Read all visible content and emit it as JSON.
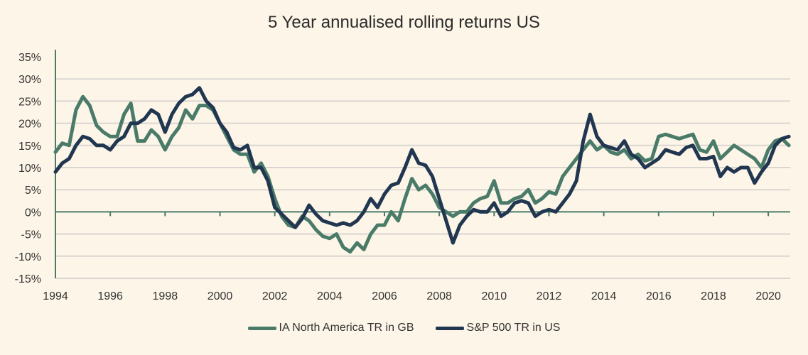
{
  "chart_data": {
    "type": "line",
    "title": "5 Year annualised rolling returns US",
    "xlabel": "",
    "ylabel": "",
    "xlim": [
      1994,
      2020.8
    ],
    "ylim": [
      -15,
      35
    ],
    "x_ticks": [
      "1994",
      "1996",
      "1998",
      "2000",
      "2002",
      "2004",
      "2006",
      "2008",
      "2010",
      "2012",
      "2014",
      "2016",
      "2018",
      "2020"
    ],
    "y_ticks": [
      "35%",
      "30%",
      "25%",
      "20%",
      "15%",
      "10%",
      "5%",
      "0%",
      "-5%",
      "-10%",
      "-15%"
    ],
    "grid": "horizontal",
    "legend": "bottom",
    "x": [
      1994,
      1994.25,
      1994.5,
      1994.75,
      1995,
      1995.25,
      1995.5,
      1995.75,
      1996,
      1996.25,
      1996.5,
      1996.75,
      1997,
      1997.25,
      1997.5,
      1997.75,
      1998,
      1998.25,
      1998.5,
      1998.75,
      1999,
      1999.25,
      1999.5,
      1999.75,
      2000,
      2000.25,
      2000.5,
      2000.75,
      2001,
      2001.25,
      2001.5,
      2001.75,
      2002,
      2002.25,
      2002.5,
      2002.75,
      2003,
      2003.25,
      2003.5,
      2003.75,
      2004,
      2004.25,
      2004.5,
      2004.75,
      2005,
      2005.25,
      2005.5,
      2005.75,
      2006,
      2006.25,
      2006.5,
      2006.75,
      2007,
      2007.25,
      2007.5,
      2007.75,
      2008,
      2008.25,
      2008.5,
      2008.75,
      2009,
      2009.25,
      2009.5,
      2009.75,
      2010,
      2010.25,
      2010.5,
      2010.75,
      2011,
      2011.25,
      2011.5,
      2011.75,
      2012,
      2012.25,
      2012.5,
      2012.75,
      2013,
      2013.25,
      2013.5,
      2013.75,
      2014,
      2014.25,
      2014.5,
      2014.75,
      2015,
      2015.25,
      2015.5,
      2015.75,
      2016,
      2016.25,
      2016.5,
      2016.75,
      2017,
      2017.25,
      2017.5,
      2017.75,
      2018,
      2018.25,
      2018.5,
      2018.75,
      2019,
      2019.25,
      2019.5,
      2019.75,
      2020,
      2020.25,
      2020.5,
      2020.75
    ],
    "series": [
      {
        "name": "IA North America TR in GB",
        "color": "#4a7b69",
        "values": [
          13.5,
          15.5,
          15,
          23,
          26,
          24,
          19.5,
          18,
          17,
          17,
          22,
          24.5,
          16,
          16,
          18.5,
          17,
          14,
          17,
          19,
          23,
          21,
          24,
          24,
          23,
          20,
          17,
          14,
          13,
          13,
          9,
          11,
          8,
          3,
          -1,
          -3,
          -3.5,
          -1,
          -2,
          -4,
          -5.5,
          -6,
          -5,
          -8,
          -9,
          -7,
          -8.5,
          -5,
          -3,
          -3,
          0,
          -2,
          3,
          7.5,
          5,
          6,
          4,
          1,
          0,
          -1,
          0,
          0,
          2,
          3,
          3.5,
          7,
          2,
          2,
          3,
          3.5,
          5,
          2,
          3,
          4.5,
          4,
          8,
          10,
          12,
          14,
          16,
          14,
          15,
          13.5,
          13,
          14,
          12,
          13,
          11.5,
          12,
          17,
          17.5,
          17,
          16.5,
          17,
          17.5,
          14,
          13.5,
          16,
          12,
          13.5,
          15,
          14,
          13,
          12,
          10,
          14,
          16,
          16.5,
          15
        ]
      },
      {
        "name": "S&P 500 TR in US",
        "color": "#213650",
        "values": [
          9,
          11,
          12,
          15,
          17,
          16.5,
          15,
          15,
          14,
          16,
          17,
          20,
          20,
          21,
          23,
          22,
          18,
          22,
          24.5,
          26,
          26.5,
          28,
          25,
          23.5,
          20,
          18,
          14.5,
          14,
          15,
          10,
          10,
          7,
          1,
          -0.5,
          -2,
          -3.5,
          -1.5,
          1.5,
          -0.5,
          -2,
          -2.5,
          -3,
          -2.5,
          -3,
          -2,
          0,
          3,
          1,
          4,
          6,
          6.5,
          10,
          14,
          11,
          10.5,
          8,
          3,
          -2,
          -7,
          -3,
          -1,
          0.5,
          0,
          0,
          2,
          -1,
          0,
          2,
          2.5,
          2,
          -1,
          0,
          0.5,
          0,
          2,
          4,
          7,
          16,
          22,
          17,
          15,
          14.5,
          14,
          16,
          13,
          12,
          10,
          11,
          12,
          14,
          13.5,
          13,
          14.5,
          15,
          12,
          12,
          12.5,
          8,
          10,
          9,
          10,
          10,
          6.5,
          9,
          11,
          15,
          16.5,
          17
        ]
      }
    ]
  }
}
